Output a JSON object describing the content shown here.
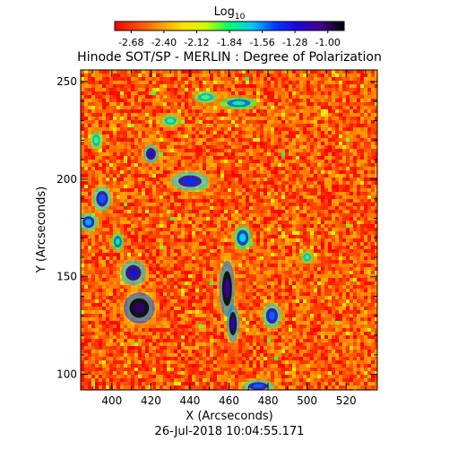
{
  "chart_data": {
    "type": "heatmap",
    "title": "Hinode SOT/SP - MERLIN : Degree of Polarization",
    "subtitle": "26-Jul-2018 10:04:55.171",
    "xlabel": "X (Arcseconds)",
    "ylabel": "Y (Arcseconds)",
    "xlim": [
      384,
      536
    ],
    "ylim": [
      92,
      256
    ],
    "x_ticks": [
      400,
      420,
      440,
      460,
      480,
      500,
      520
    ],
    "y_ticks": [
      100,
      150,
      200,
      250
    ],
    "colorbar": {
      "label_base": "Log",
      "label_sub": "10",
      "range": [
        -2.82,
        -0.86
      ],
      "ticks": [
        "-2.68",
        "-2.40",
        "-2.12",
        "-1.84",
        "-1.56",
        "-1.28",
        "-1.00"
      ],
      "colormap": [
        "#ff0000",
        "#ff4a00",
        "#ff9a00",
        "#ffe200",
        "#c8ff00",
        "#00ff6e",
        "#00c8ff",
        "#0038ff",
        "#2200dd",
        "#440088",
        "#000000"
      ]
    },
    "background_level": -2.6,
    "strong_polarization_regions": [
      {
        "x": 414,
        "y": 134,
        "rx": 5,
        "ry": 5,
        "level": -1.0
      },
      {
        "x": 411,
        "y": 152,
        "rx": 4,
        "ry": 4,
        "level": -1.3
      },
      {
        "x": 459,
        "y": 144,
        "rx": 2.5,
        "ry": 9,
        "level": -1.1
      },
      {
        "x": 462,
        "y": 126,
        "rx": 2,
        "ry": 6,
        "level": -1.2
      },
      {
        "x": 440,
        "y": 199,
        "rx": 6,
        "ry": 3,
        "level": -1.4
      },
      {
        "x": 420,
        "y": 213,
        "rx": 2.5,
        "ry": 3,
        "level": -1.3
      },
      {
        "x": 395,
        "y": 190,
        "rx": 3,
        "ry": 4,
        "level": -1.5
      },
      {
        "x": 388,
        "y": 178,
        "rx": 3,
        "ry": 3,
        "level": -1.6
      },
      {
        "x": 482,
        "y": 130,
        "rx": 3,
        "ry": 4,
        "level": -1.5
      },
      {
        "x": 467,
        "y": 170,
        "rx": 3,
        "ry": 4,
        "level": -1.7
      },
      {
        "x": 448,
        "y": 242,
        "rx": 4,
        "ry": 2,
        "level": -1.9
      },
      {
        "x": 465,
        "y": 239,
        "rx": 6,
        "ry": 2,
        "level": -1.8
      },
      {
        "x": 403,
        "y": 168,
        "rx": 2,
        "ry": 3,
        "level": -1.8
      },
      {
        "x": 475,
        "y": 94,
        "rx": 5,
        "ry": 2,
        "level": -1.5
      },
      {
        "x": 392,
        "y": 220,
        "rx": 2,
        "ry": 3,
        "level": -1.9
      },
      {
        "x": 500,
        "y": 160,
        "rx": 2,
        "ry": 2,
        "level": -1.9
      },
      {
        "x": 430,
        "y": 230,
        "rx": 3,
        "ry": 2,
        "level": -1.9
      }
    ]
  }
}
